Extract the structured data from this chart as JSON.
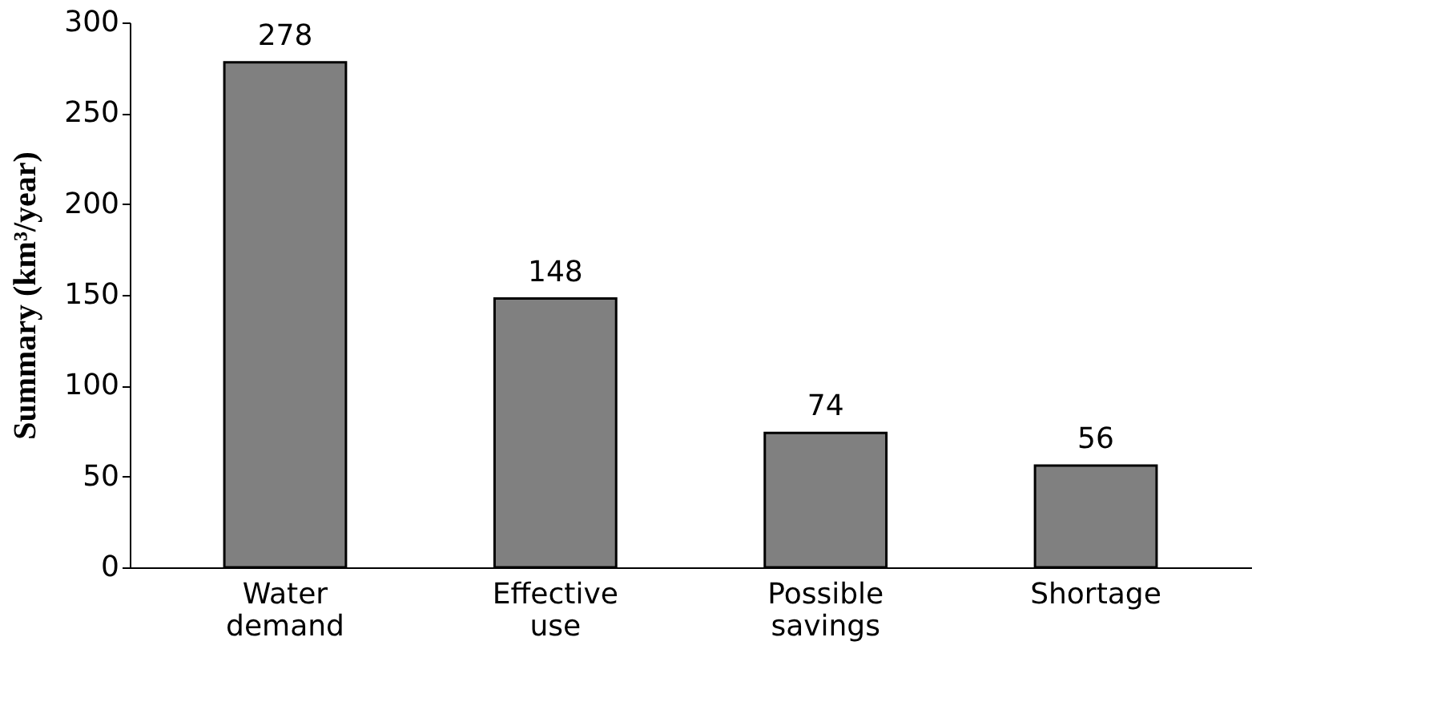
{
  "chart_data": {
    "type": "bar",
    "ylabel": "Summary (km³/year)",
    "categories": [
      "Water demand",
      "Effective use",
      "Possible savings",
      "Shortage"
    ],
    "values": [
      278,
      148,
      74,
      56
    ],
    "color": "#808080",
    "ylim": [
      0,
      300
    ],
    "yticks": [
      0,
      50,
      100,
      150,
      200,
      250,
      300
    ],
    "data_labels": true
  }
}
